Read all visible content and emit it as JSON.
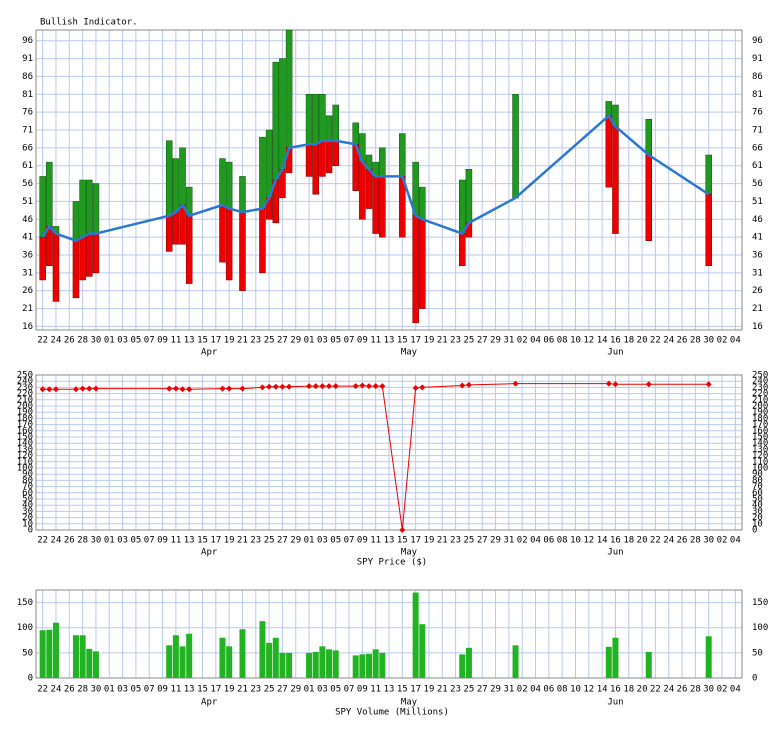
{
  "chart_data": [
    {
      "type": "range-bar",
      "title": "Bullish Indicator.",
      "x": [
        "03-22",
        "03-23",
        "03-24",
        "03-27",
        "03-28",
        "03-29",
        "03-30",
        "04-10",
        "04-11",
        "04-12",
        "04-13",
        "04-18",
        "04-19",
        "04-21",
        "04-24",
        "04-25",
        "04-26",
        "04-27",
        "04-28",
        "05-01",
        "05-02",
        "05-03",
        "05-04",
        "05-05",
        "05-08",
        "05-09",
        "05-10",
        "05-11",
        "05-12",
        "05-15",
        "05-17",
        "05-18",
        "05-24",
        "05-25",
        "06-01",
        "06-15",
        "06-16",
        "06-21",
        "06-30"
      ],
      "values": [
        41,
        44,
        42,
        40,
        41,
        42,
        42,
        47,
        48,
        50,
        47,
        50,
        49,
        48,
        49,
        52,
        57,
        60,
        66,
        67,
        67,
        68,
        68,
        68,
        67,
        62,
        60,
        58,
        58,
        58,
        47,
        46,
        42,
        45,
        52,
        75,
        72,
        64,
        53
      ],
      "highs": [
        58,
        62,
        44,
        51,
        57,
        57,
        56,
        68,
        63,
        66,
        55,
        63,
        62,
        58,
        69,
        71,
        90,
        91,
        99,
        81,
        81,
        81,
        75,
        78,
        73,
        70,
        64,
        62,
        66,
        70,
        62,
        55,
        57,
        60,
        81,
        79,
        78,
        74,
        64
      ],
      "lows": [
        29,
        33,
        23,
        24,
        29,
        30,
        31,
        37,
        39,
        39,
        28,
        34,
        29,
        26,
        31,
        46,
        45,
        52,
        59,
        58,
        53,
        58,
        59,
        61,
        54,
        46,
        49,
        42,
        41,
        41,
        17,
        21,
        33,
        41,
        52,
        55,
        42,
        40,
        33
      ],
      "line_color": "#2a78d2",
      "up_color": "#1f9a1f",
      "down_color": "#ee0000",
      "ylim": [
        15,
        99
      ],
      "yticks": [
        16,
        21,
        26,
        31,
        36,
        41,
        46,
        51,
        56,
        61,
        66,
        71,
        76,
        81,
        86,
        91,
        96
      ],
      "xlim": [
        "03-21",
        "07-05"
      ],
      "xticks": [
        {
          "value": "03-22",
          "label": "22"
        },
        {
          "value": "03-24",
          "label": "24"
        },
        {
          "value": "03-26",
          "label": "26"
        },
        {
          "value": "03-28",
          "label": "28"
        },
        {
          "value": "03-30",
          "label": "30"
        },
        {
          "value": "04-01",
          "label": "01"
        },
        {
          "value": "04-03",
          "label": "03"
        },
        {
          "value": "04-05",
          "label": "05"
        },
        {
          "value": "04-07",
          "label": "07"
        },
        {
          "value": "04-09",
          "label": "09"
        },
        {
          "value": "04-11",
          "label": "11"
        },
        {
          "value": "04-13",
          "label": "13"
        },
        {
          "value": "04-15",
          "label": "15"
        },
        {
          "value": "04-17",
          "label": "17"
        },
        {
          "value": "04-19",
          "label": "19"
        },
        {
          "value": "04-21",
          "label": "21"
        },
        {
          "value": "04-23",
          "label": "23"
        },
        {
          "value": "04-25",
          "label": "25"
        },
        {
          "value": "04-27",
          "label": "27"
        },
        {
          "value": "04-29",
          "label": "29"
        },
        {
          "value": "05-01",
          "label": "01"
        },
        {
          "value": "05-03",
          "label": "03"
        },
        {
          "value": "05-05",
          "label": "05"
        },
        {
          "value": "05-07",
          "label": "07"
        },
        {
          "value": "05-09",
          "label": "09"
        },
        {
          "value": "05-11",
          "label": "11"
        },
        {
          "value": "05-13",
          "label": "13"
        },
        {
          "value": "05-15",
          "label": "15"
        },
        {
          "value": "05-17",
          "label": "17"
        },
        {
          "value": "05-19",
          "label": "19"
        },
        {
          "value": "05-21",
          "label": "21"
        },
        {
          "value": "05-23",
          "label": "23"
        },
        {
          "value": "05-25",
          "label": "25"
        },
        {
          "value": "05-27",
          "label": "27"
        },
        {
          "value": "05-29",
          "label": "29"
        },
        {
          "value": "05-31",
          "label": "31"
        },
        {
          "value": "06-02",
          "label": "02"
        },
        {
          "value": "06-04",
          "label": "04"
        },
        {
          "value": "06-06",
          "label": "06"
        },
        {
          "value": "06-08",
          "label": "08"
        },
        {
          "value": "06-10",
          "label": "10"
        },
        {
          "value": "06-12",
          "label": "12"
        },
        {
          "value": "06-14",
          "label": "14"
        },
        {
          "value": "06-16",
          "label": "16"
        },
        {
          "value": "06-18",
          "label": "18"
        },
        {
          "value": "06-20",
          "label": "20"
        },
        {
          "value": "06-22",
          "label": "22"
        },
        {
          "value": "06-24",
          "label": "24"
        },
        {
          "value": "06-26",
          "label": "26"
        },
        {
          "value": "06-28",
          "label": "28"
        },
        {
          "value": "06-30",
          "label": "30"
        },
        {
          "value": "07-02",
          "label": "02"
        },
        {
          "value": "07-04",
          "label": "04"
        }
      ],
      "months": [
        {
          "value": "04-16",
          "label": "Apr"
        },
        {
          "value": "05-16",
          "label": "May"
        },
        {
          "value": "06-16",
          "label": "Jun"
        }
      ],
      "grid": true
    },
    {
      "type": "line",
      "title": "SPY Price ($)",
      "x": [
        "03-22",
        "03-23",
        "03-24",
        "03-27",
        "03-28",
        "03-29",
        "03-30",
        "04-10",
        "04-11",
        "04-12",
        "04-13",
        "04-18",
        "04-19",
        "04-21",
        "04-24",
        "04-25",
        "04-26",
        "04-27",
        "04-28",
        "05-01",
        "05-02",
        "05-03",
        "05-04",
        "05-05",
        "05-08",
        "05-09",
        "05-10",
        "05-11",
        "05-12",
        "05-15",
        "05-17",
        "05-18",
        "05-24",
        "05-25",
        "06-01",
        "06-15",
        "06-16",
        "06-21",
        "06-30"
      ],
      "values": [
        227,
        227,
        227,
        227,
        228,
        228,
        228,
        228,
        228,
        227,
        227,
        228,
        228,
        228,
        230,
        231,
        231,
        231,
        231,
        232,
        232,
        232,
        232,
        232,
        232,
        233,
        232,
        232,
        232,
        0,
        229,
        230,
        233,
        234,
        236,
        236,
        235,
        235,
        235
      ],
      "color": "#ee0000",
      "ylim": [
        0,
        250
      ],
      "yticks": [
        0,
        10,
        20,
        30,
        40,
        50,
        60,
        70,
        80,
        90,
        100,
        110,
        120,
        130,
        140,
        150,
        160,
        170,
        180,
        190,
        200,
        210,
        220,
        230,
        240,
        250
      ],
      "xlim": [
        "03-21",
        "07-05"
      ],
      "xticks": [
        {
          "value": "03-22",
          "label": "22"
        },
        {
          "value": "03-24",
          "label": "24"
        },
        {
          "value": "03-26",
          "label": "26"
        },
        {
          "value": "03-28",
          "label": "28"
        },
        {
          "value": "03-30",
          "label": "30"
        },
        {
          "value": "04-01",
          "label": "01"
        },
        {
          "value": "04-03",
          "label": "03"
        },
        {
          "value": "04-05",
          "label": "05"
        },
        {
          "value": "04-07",
          "label": "07"
        },
        {
          "value": "04-09",
          "label": "09"
        },
        {
          "value": "04-11",
          "label": "11"
        },
        {
          "value": "04-13",
          "label": "13"
        },
        {
          "value": "04-15",
          "label": "15"
        },
        {
          "value": "04-17",
          "label": "17"
        },
        {
          "value": "04-19",
          "label": "19"
        },
        {
          "value": "04-21",
          "label": "21"
        },
        {
          "value": "04-23",
          "label": "23"
        },
        {
          "value": "04-25",
          "label": "25"
        },
        {
          "value": "04-27",
          "label": "27"
        },
        {
          "value": "04-29",
          "label": "29"
        },
        {
          "value": "05-01",
          "label": "01"
        },
        {
          "value": "05-03",
          "label": "03"
        },
        {
          "value": "05-05",
          "label": "05"
        },
        {
          "value": "05-07",
          "label": "07"
        },
        {
          "value": "05-09",
          "label": "09"
        },
        {
          "value": "05-11",
          "label": "11"
        },
        {
          "value": "05-13",
          "label": "13"
        },
        {
          "value": "05-15",
          "label": "15"
        },
        {
          "value": "05-17",
          "label": "17"
        },
        {
          "value": "05-19",
          "label": "19"
        },
        {
          "value": "05-21",
          "label": "21"
        },
        {
          "value": "05-23",
          "label": "23"
        },
        {
          "value": "05-25",
          "label": "25"
        },
        {
          "value": "05-27",
          "label": "27"
        },
        {
          "value": "05-29",
          "label": "29"
        },
        {
          "value": "05-31",
          "label": "31"
        },
        {
          "value": "06-02",
          "label": "02"
        },
        {
          "value": "06-04",
          "label": "04"
        },
        {
          "value": "06-06",
          "label": "06"
        },
        {
          "value": "06-08",
          "label": "08"
        },
        {
          "value": "06-10",
          "label": "10"
        },
        {
          "value": "06-12",
          "label": "12"
        },
        {
          "value": "06-14",
          "label": "14"
        },
        {
          "value": "06-16",
          "label": "16"
        },
        {
          "value": "06-18",
          "label": "18"
        },
        {
          "value": "06-20",
          "label": "20"
        },
        {
          "value": "06-22",
          "label": "22"
        },
        {
          "value": "06-24",
          "label": "24"
        },
        {
          "value": "06-26",
          "label": "26"
        },
        {
          "value": "06-28",
          "label": "28"
        },
        {
          "value": "06-30",
          "label": "30"
        },
        {
          "value": "07-02",
          "label": "02"
        },
        {
          "value": "07-04",
          "label": "04"
        }
      ],
      "months": [
        {
          "value": "04-16",
          "label": "Apr"
        },
        {
          "value": "05-16",
          "label": "May"
        },
        {
          "value": "06-16",
          "label": "Jun"
        }
      ],
      "grid": true
    },
    {
      "type": "bar",
      "title": "SPY Volume (Millions)",
      "x": [
        "03-22",
        "03-23",
        "03-24",
        "03-27",
        "03-28",
        "03-29",
        "03-30",
        "04-10",
        "04-11",
        "04-12",
        "04-13",
        "04-18",
        "04-19",
        "04-21",
        "04-24",
        "04-25",
        "04-26",
        "04-27",
        "04-28",
        "05-01",
        "05-02",
        "05-03",
        "05-04",
        "05-05",
        "05-08",
        "05-09",
        "05-10",
        "05-11",
        "05-12",
        "05-15",
        "05-17",
        "05-18",
        "05-24",
        "05-25",
        "06-01",
        "06-15",
        "06-16",
        "06-21",
        "06-30"
      ],
      "values": [
        95,
        96,
        110,
        85,
        85,
        58,
        53,
        65,
        85,
        63,
        88,
        80,
        63,
        97,
        113,
        70,
        80,
        50,
        50,
        50,
        52,
        63,
        57,
        55,
        45,
        47,
        48,
        57,
        50,
        null,
        170,
        107,
        47,
        60,
        65,
        62,
        80,
        52,
        83
      ],
      "color": "#22b322",
      "ylim": [
        0,
        175
      ],
      "yticks": [
        0,
        50,
        100,
        150
      ],
      "xlim": [
        "03-21",
        "07-05"
      ],
      "xticks": [
        {
          "value": "03-22",
          "label": "22"
        },
        {
          "value": "03-24",
          "label": "24"
        },
        {
          "value": "03-26",
          "label": "26"
        },
        {
          "value": "03-28",
          "label": "28"
        },
        {
          "value": "03-30",
          "label": "30"
        },
        {
          "value": "04-01",
          "label": "01"
        },
        {
          "value": "04-03",
          "label": "03"
        },
        {
          "value": "04-05",
          "label": "05"
        },
        {
          "value": "04-07",
          "label": "07"
        },
        {
          "value": "04-09",
          "label": "09"
        },
        {
          "value": "04-11",
          "label": "11"
        },
        {
          "value": "04-13",
          "label": "13"
        },
        {
          "value": "04-15",
          "label": "15"
        },
        {
          "value": "04-17",
          "label": "17"
        },
        {
          "value": "04-19",
          "label": "19"
        },
        {
          "value": "04-21",
          "label": "21"
        },
        {
          "value": "04-23",
          "label": "23"
        },
        {
          "value": "04-25",
          "label": "25"
        },
        {
          "value": "04-27",
          "label": "27"
        },
        {
          "value": "04-29",
          "label": "29"
        },
        {
          "value": "05-01",
          "label": "01"
        },
        {
          "value": "05-03",
          "label": "03"
        },
        {
          "value": "05-05",
          "label": "05"
        },
        {
          "value": "05-07",
          "label": "07"
        },
        {
          "value": "05-09",
          "label": "09"
        },
        {
          "value": "05-11",
          "label": "11"
        },
        {
          "value": "05-13",
          "label": "13"
        },
        {
          "value": "05-15",
          "label": "15"
        },
        {
          "value": "05-17",
          "label": "17"
        },
        {
          "value": "05-19",
          "label": "19"
        },
        {
          "value": "05-21",
          "label": "21"
        },
        {
          "value": "05-23",
          "label": "23"
        },
        {
          "value": "05-25",
          "label": "25"
        },
        {
          "value": "05-27",
          "label": "27"
        },
        {
          "value": "05-29",
          "label": "29"
        },
        {
          "value": "05-31",
          "label": "31"
        },
        {
          "value": "06-02",
          "label": "02"
        },
        {
          "value": "06-04",
          "label": "04"
        },
        {
          "value": "06-06",
          "label": "06"
        },
        {
          "value": "06-08",
          "label": "08"
        },
        {
          "value": "06-10",
          "label": "10"
        },
        {
          "value": "06-12",
          "label": "12"
        },
        {
          "value": "06-14",
          "label": "14"
        },
        {
          "value": "06-16",
          "label": "16"
        },
        {
          "value": "06-18",
          "label": "18"
        },
        {
          "value": "06-20",
          "label": "20"
        },
        {
          "value": "06-22",
          "label": "22"
        },
        {
          "value": "06-24",
          "label": "24"
        },
        {
          "value": "06-26",
          "label": "26"
        },
        {
          "value": "06-28",
          "label": "28"
        },
        {
          "value": "06-30",
          "label": "30"
        },
        {
          "value": "07-02",
          "label": "02"
        },
        {
          "value": "07-04",
          "label": "04"
        }
      ],
      "months": [
        {
          "value": "04-16",
          "label": "Apr"
        },
        {
          "value": "05-16",
          "label": "May"
        },
        {
          "value": "06-16",
          "label": "Jun"
        }
      ],
      "grid": true
    }
  ]
}
